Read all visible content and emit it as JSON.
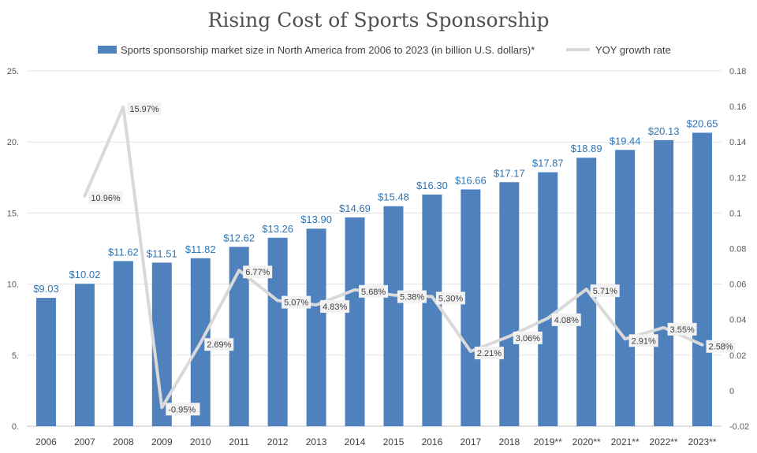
{
  "chart_data": {
    "type": "bar+line",
    "title": "Rising Cost of Sports Sponsorship",
    "categories": [
      "2006",
      "2007",
      "2008",
      "2009",
      "2010",
      "2011",
      "2012",
      "2013",
      "2014",
      "2015",
      "2016",
      "2017",
      "2018",
      "2019**",
      "2020**",
      "2021**",
      "2022**",
      "2023**"
    ],
    "series": [
      {
        "name": "Sports sponsorship market size in North America from 2006 to 2023 (in billion U.S. dollars)*",
        "type": "bar",
        "axis": "left",
        "color": "#4F81BD",
        "values": [
          9.03,
          10.02,
          11.62,
          11.51,
          11.82,
          12.62,
          13.26,
          13.9,
          14.69,
          15.48,
          16.3,
          16.66,
          17.17,
          17.87,
          18.89,
          19.44,
          20.13,
          20.65
        ],
        "labels": [
          "$9.03",
          "$10.02",
          "$11.62",
          "$11.51",
          "$11.82",
          "$12.62",
          "$13.26",
          "$13.90",
          "$14.69",
          "$15.48",
          "$16.30",
          "$16.66",
          "$17.17",
          "$17.87",
          "$18.89",
          "$19.44",
          "$20.13",
          "$20.65"
        ]
      },
      {
        "name": "YOY growth rate",
        "type": "line",
        "axis": "right",
        "color": "#D9D9D9",
        "values": [
          null,
          0.1096,
          0.1597,
          -0.0095,
          0.0269,
          0.0677,
          0.0507,
          0.0483,
          0.0568,
          0.0538,
          0.053,
          0.0221,
          0.0306,
          0.0408,
          0.0571,
          0.0291,
          0.0355,
          0.0258
        ],
        "labels": [
          null,
          "10.96%",
          "15.97%",
          "-0.95%",
          "2.69%",
          "6.77%",
          "5.07%",
          "4.83%",
          "5.68%",
          "5.38%",
          "5.30%",
          "2.21%",
          "3.06%",
          "4.08%",
          "5.71%",
          "2.91%",
          "3.55%",
          "2.58%"
        ]
      }
    ],
    "y_left": {
      "min": 0,
      "max": 25,
      "ticks": [
        "0.",
        "5.",
        "10.",
        "15.",
        "20.",
        "25."
      ]
    },
    "y_right": {
      "min": -0.02,
      "max": 0.18,
      "ticks": [
        "-0.02",
        "0",
        "0.02",
        "0.04",
        "0.06",
        "0.08",
        "0.1",
        "0.12",
        "0.14",
        "0.16",
        "0.18"
      ]
    },
    "grid": true,
    "legend_position": "top"
  }
}
